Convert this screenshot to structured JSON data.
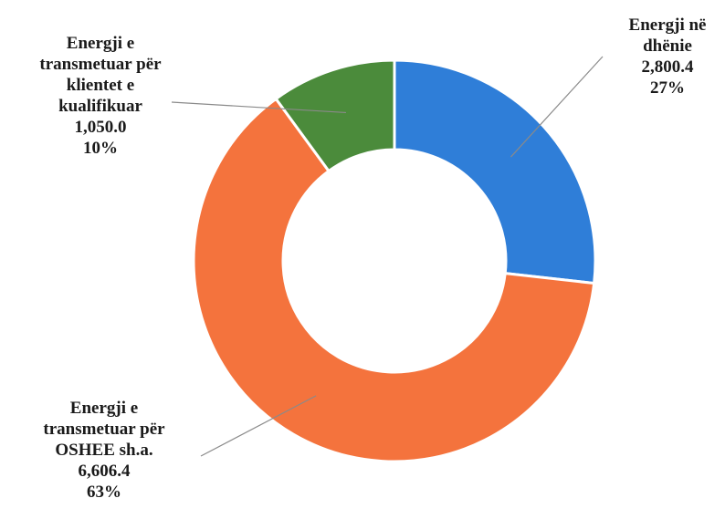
{
  "chart_data": {
    "type": "pie",
    "donut": true,
    "slices": [
      {
        "label_lines": [
          "Energji në",
          "dhënie"
        ],
        "value": "2,800.4",
        "percent": "27%",
        "v": 2800.4,
        "color": "#2f7ed8"
      },
      {
        "label_lines": [
          "Energji e",
          "transmetuar për",
          "OSHEE sh.a."
        ],
        "value": "6,606.4",
        "percent": "63%",
        "v": 6606.4,
        "color": "#f4733d"
      },
      {
        "label_lines": [
          "Energji e",
          "transmetuar për",
          "klientet e",
          "kualifikuar"
        ],
        "value": "1,050.0",
        "percent": "10%",
        "v": 1050.0,
        "color": "#4b8b3b"
      }
    ]
  }
}
